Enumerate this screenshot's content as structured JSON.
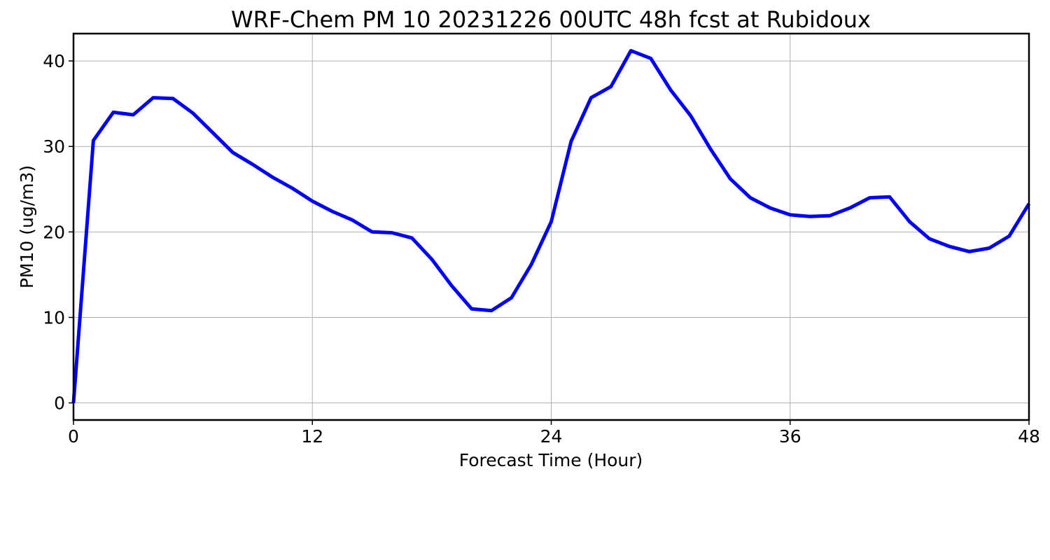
{
  "chart_data": {
    "type": "line",
    "title": "WRF-Chem PM 10  20231226 00UTC 48h fcst at Rubidoux",
    "xlabel": "Forecast Time (Hour)",
    "ylabel": "PM10  (ug/m3)",
    "xlim": [
      0,
      48
    ],
    "ylim": [
      -2,
      43.2
    ],
    "xticks": [
      0,
      12,
      24,
      36,
      48
    ],
    "yticks": [
      0,
      10,
      20,
      30,
      40
    ],
    "grid": true,
    "legend": "none",
    "series": [
      {
        "color": "#0000ff",
        "x": [
          0,
          1,
          2,
          3,
          4,
          5,
          6,
          7,
          8,
          9,
          10,
          11,
          12,
          13,
          14,
          15,
          16,
          17,
          18,
          19,
          20,
          21,
          22,
          23,
          24,
          25,
          26,
          27,
          28,
          29,
          30,
          31,
          32,
          33,
          34,
          35,
          36,
          37,
          38,
          39,
          40,
          41,
          42,
          43,
          44,
          45,
          46,
          47,
          48
        ],
        "y": [
          0,
          30.7,
          34.0,
          33.7,
          35.7,
          35.6,
          33.9,
          31.6,
          29.3,
          27.9,
          26.4,
          25.1,
          23.6,
          22.4,
          21.4,
          20.0,
          19.9,
          19.3,
          16.8,
          13.7,
          11.0,
          10.8,
          12.3,
          16.2,
          21.2,
          30.6,
          35.7,
          37.0,
          41.2,
          40.3,
          36.6,
          33.6,
          29.7,
          26.2,
          24.0,
          22.8,
          22.0,
          21.8,
          21.9,
          22.8,
          24.0,
          24.1,
          21.2,
          19.2,
          18.3,
          17.7,
          18.1,
          19.5,
          23.3
        ]
      }
    ]
  }
}
